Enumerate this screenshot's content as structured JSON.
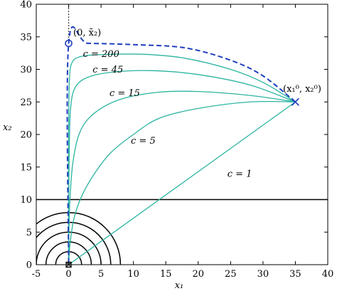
{
  "chart_data": {
    "type": "line",
    "title": "",
    "xlabel": "x₁",
    "ylabel": "x₂",
    "xlim": [
      -5,
      40
    ],
    "ylim": [
      0,
      40
    ],
    "x_ticks": [
      -5,
      0,
      5,
      10,
      15,
      20,
      25,
      30,
      35,
      40
    ],
    "y_ticks": [
      0,
      5,
      10,
      15,
      20,
      25,
      30,
      35,
      40
    ],
    "x_tick_labels": [
      "-5",
      "0",
      "5",
      "10",
      "15",
      "20",
      "25",
      "30",
      "35",
      "40"
    ],
    "y_tick_labels": [
      "0",
      "5",
      "10",
      "15",
      "20",
      "25",
      "30",
      "35",
      "40"
    ],
    "grid": false,
    "legend": "none",
    "horizontal_line": {
      "y": 10,
      "color": "#000000"
    },
    "vertical_dotted_line": {
      "x": 0,
      "y_from": 34,
      "y_to": 40,
      "color": "#000000"
    },
    "obstacle_arcs": {
      "center": [
        0,
        0
      ],
      "radii": [
        2,
        3.5,
        5,
        6.5,
        8
      ],
      "color": "#000000"
    },
    "start_point": {
      "x": 35,
      "y": 25,
      "label": "(x₁⁰, x₂⁰)",
      "color": "#1f3fbf"
    },
    "target_point": {
      "x": 0,
      "y": 34,
      "label": "(0, x̄₂)",
      "color": "#1f3fbf"
    },
    "series": [
      {
        "name": "c = 1",
        "color": "#2bb5a0",
        "points": [
          [
            35,
            25
          ],
          [
            0,
            0
          ]
        ]
      },
      {
        "name": "c = 5",
        "color": "#2bb5a0",
        "points": [
          [
            35,
            25
          ],
          [
            28,
            25
          ],
          [
            20,
            24
          ],
          [
            14,
            22.5
          ],
          [
            10,
            20
          ],
          [
            6.5,
            17.2
          ],
          [
            4,
            14
          ],
          [
            2,
            10.5
          ],
          [
            0.8,
            7
          ],
          [
            0.2,
            3
          ],
          [
            0,
            0
          ]
        ]
      },
      {
        "name": "c = 15",
        "color": "#2bb5a0",
        "points": [
          [
            35,
            25
          ],
          [
            28,
            26
          ],
          [
            20,
            26.6
          ],
          [
            14,
            26.5
          ],
          [
            8,
            25.4
          ],
          [
            4,
            23.3
          ],
          [
            1.8,
            20.5
          ],
          [
            0.7,
            16
          ],
          [
            0.2,
            10
          ],
          [
            0,
            3
          ],
          [
            0,
            0
          ]
        ]
      },
      {
        "name": "c = 45",
        "color": "#2bb5a0",
        "points": [
          [
            35,
            25
          ],
          [
            28,
            27.6
          ],
          [
            20,
            29.2
          ],
          [
            13,
            29.8
          ],
          [
            7,
            29.6
          ],
          [
            3,
            28.8
          ],
          [
            1,
            27.2
          ],
          [
            0.3,
            24
          ],
          [
            0.1,
            18
          ],
          [
            0,
            10
          ],
          [
            0,
            0
          ]
        ]
      },
      {
        "name": "c = 200",
        "color": "#2bb5a0",
        "points": [
          [
            35,
            25
          ],
          [
            30,
            28
          ],
          [
            25,
            30
          ],
          [
            18,
            31.7
          ],
          [
            12,
            32.3
          ],
          [
            6,
            32.3
          ],
          [
            2,
            32
          ],
          [
            0.5,
            31
          ],
          [
            0.1,
            28
          ],
          [
            0,
            20
          ],
          [
            0,
            0
          ]
        ]
      },
      {
        "name": "",
        "color": "#1f3fbf",
        "dashed": true,
        "points": [
          [
            35,
            25
          ],
          [
            30,
            29
          ],
          [
            25,
            31.4
          ],
          [
            18,
            33.3
          ],
          [
            10,
            33.8
          ],
          [
            3,
            34
          ],
          [
            0,
            34
          ],
          [
            0,
            0
          ]
        ]
      }
    ],
    "annotations": [
      {
        "text": "c = 200",
        "x": 2.2,
        "y": 31.9
      },
      {
        "text": "c = 45",
        "x": 3.7,
        "y": 29.5
      },
      {
        "text": "c = 15",
        "x": 6.3,
        "y": 25.9
      },
      {
        "text": "c = 5",
        "x": 9.6,
        "y": 18.6
      },
      {
        "text": "c = 1",
        "x": 24.5,
        "y": 13.5
      }
    ],
    "colors": {
      "teal": "#2bb5a0",
      "blue": "#1f3fbf",
      "axis": "#000000"
    }
  }
}
